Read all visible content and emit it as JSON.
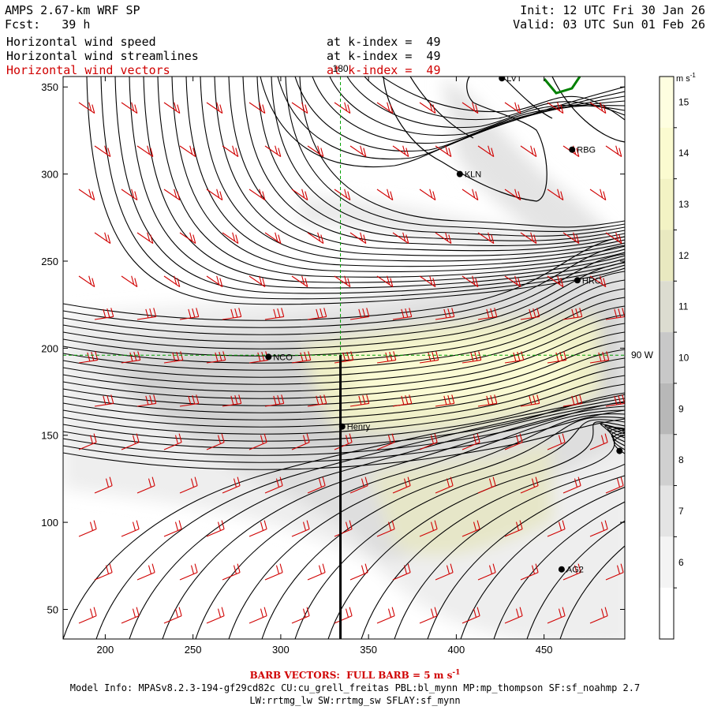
{
  "header": {
    "model": "AMPS 2.67-km WRF SP",
    "forecast": "Fcst:   39 h",
    "init": "Init: 12 UTC Fri 30 Jan 26",
    "valid": "Valid: 03 UTC Sun 01 Feb 26",
    "fields": [
      {
        "name": "Horizontal wind speed",
        "level": "at k-index =  49",
        "color": "#000000"
      },
      {
        "name": "Horizontal wind streamlines",
        "level": "at k-index =  49",
        "color": "#000000"
      },
      {
        "name": "Horizontal wind vectors",
        "level": "at k-index =  49",
        "color": "#d00000"
      }
    ]
  },
  "map": {
    "x_ticks": [
      "200",
      "250",
      "300",
      "350",
      "400",
      "450"
    ],
    "y_ticks": [
      "350",
      "300",
      "250",
      "200",
      "150",
      "100",
      "50"
    ],
    "x_range": [
      176,
      496
    ],
    "y_range": [
      33,
      356
    ],
    "meridian_label": "180",
    "meridian_x": 334,
    "parallel_label": "90 W",
    "parallel_y": 196,
    "cross_section_x": 334,
    "cross_section_y": [
      33,
      196
    ],
    "stations": [
      {
        "name": "LVT",
        "x": 426,
        "y": 355
      },
      {
        "name": "RBG",
        "x": 466,
        "y": 314
      },
      {
        "name": "KLN",
        "x": 402,
        "y": 300
      },
      {
        "name": "HRC",
        "x": 469,
        "y": 239
      },
      {
        "name": "NCO",
        "x": 293,
        "y": 195
      },
      {
        "name": "Henry",
        "x": 335,
        "y": 155
      },
      {
        "name": "",
        "x": 493,
        "y": 141
      },
      {
        "name": "AG2",
        "x": 460,
        "y": 73
      }
    ]
  },
  "colorbar": {
    "unit": "m s",
    "unit_exp": "-1",
    "levels": [
      "15",
      "14",
      "13",
      "12",
      "11",
      "10",
      "9",
      "8",
      "7",
      "6"
    ],
    "colors": [
      "#fefee0",
      "#fbfbd0",
      "#f3f3c4",
      "#e9e9c0",
      "#dcdcd0",
      "#c8c8c8",
      "#b8b8b8",
      "#d0d0d0",
      "#e4e4e4",
      "#f4f4f4",
      "#ffffff"
    ]
  },
  "footer": {
    "barb_note_a": "BARB VECTORS:  FULL BARB = 5 m s",
    "barb_note_exp": "-1",
    "model_info": "Model Info: MPASv8.2.3-194-gf29cd82c CU:cu_grell_freitas PBL:bl_mynn MP:mp_thompson SF:sf_noahmp 2.7",
    "model_info_2": "LW:rrtmg_lw SW:rrtmg_sw SFLAY:sf_mynn"
  }
}
